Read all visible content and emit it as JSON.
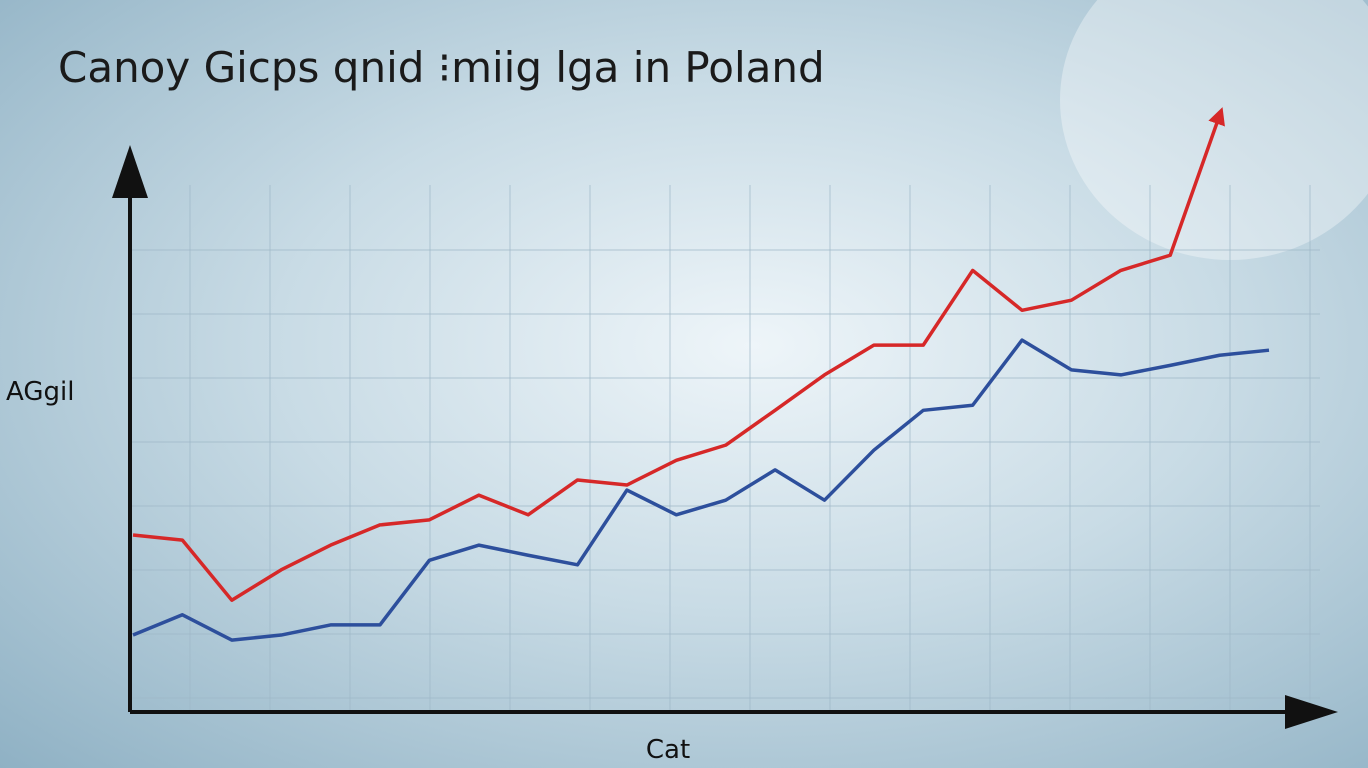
{
  "chart_data": {
    "type": "line",
    "title": "Canoy Gicps qnid ⁝miig lga in Poland",
    "y_label": "AGgil",
    "x_label": "Cat",
    "categories": [
      null,
      null,
      null,
      null,
      null,
      null,
      null,
      null,
      null,
      null,
      null,
      null,
      null,
      null,
      null,
      null,
      null,
      null,
      null,
      null,
      null,
      null,
      null,
      null
    ],
    "ylim": [
      0,
      110
    ],
    "grid": true,
    "series": [
      {
        "color": "#d62828",
        "values": [
          31.5,
          30.6,
          19.9,
          25.3,
          29.7,
          33.3,
          34.2,
          38.6,
          35.1,
          41.3,
          40.4,
          44.8,
          47.5,
          53.7,
          60.0,
          65.3,
          65.3,
          78.6,
          71.5,
          73.3,
          78.6,
          81.3,
          106.2,
          null
        ]
      },
      {
        "color": "#2d4f9c",
        "values": [
          13.7,
          17.3,
          12.8,
          13.7,
          15.5,
          15.5,
          27.0,
          29.7,
          27.9,
          26.2,
          39.5,
          35.1,
          37.7,
          43.1,
          37.7,
          46.6,
          53.7,
          54.6,
          66.2,
          60.9,
          60.0,
          61.7,
          63.5,
          64.4
        ]
      }
    ]
  }
}
